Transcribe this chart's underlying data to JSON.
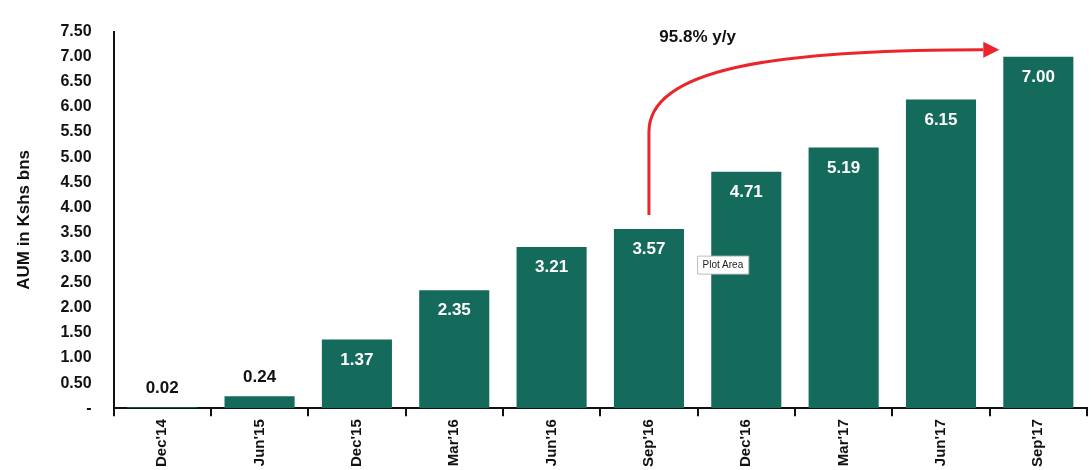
{
  "chart_data": {
    "type": "bar",
    "ylabel": "AUM in Kshs bns",
    "categories": [
      "Dec'14",
      "Jun'15",
      "Dec'15",
      "Mar'16",
      "Jun'16",
      "Sep'16",
      "Dec'16",
      "Mar'17",
      "Jun'17",
      "Sep'17"
    ],
    "values": [
      0.02,
      0.24,
      1.37,
      2.35,
      3.21,
      3.57,
      4.71,
      5.19,
      6.15,
      7.0
    ],
    "color": "#156b5b",
    "ylim": [
      0,
      7.5
    ],
    "yticks": [
      {
        "value": 0,
        "label": "-"
      },
      {
        "value": 0.5,
        "label": "0.50"
      },
      {
        "value": 1,
        "label": "1.00"
      },
      {
        "value": 1.5,
        "label": "1.50"
      },
      {
        "value": 2,
        "label": "2.00"
      },
      {
        "value": 2.5,
        "label": "2.50"
      },
      {
        "value": 3,
        "label": "3.00"
      },
      {
        "value": 3.5,
        "label": "3.50"
      },
      {
        "value": 4,
        "label": "4.00"
      },
      {
        "value": 4.5,
        "label": "4.50"
      },
      {
        "value": 5,
        "label": "5.00"
      },
      {
        "value": 5.5,
        "label": "5.50"
      },
      {
        "value": 6,
        "label": "6.00"
      },
      {
        "value": 6.5,
        "label": "6.50"
      },
      {
        "value": 7,
        "label": "7.00"
      },
      {
        "value": 7.5,
        "label": "7.50"
      }
    ],
    "value_labels": [
      "0.02",
      "0.24",
      "1.37",
      "2.35",
      "3.21",
      "3.57",
      "4.71",
      "5.19",
      "6.15",
      "7.00"
    ],
    "grid": false,
    "legend": false,
    "annotations": [
      "95.8% y/y",
      "Plot Area"
    ]
  }
}
